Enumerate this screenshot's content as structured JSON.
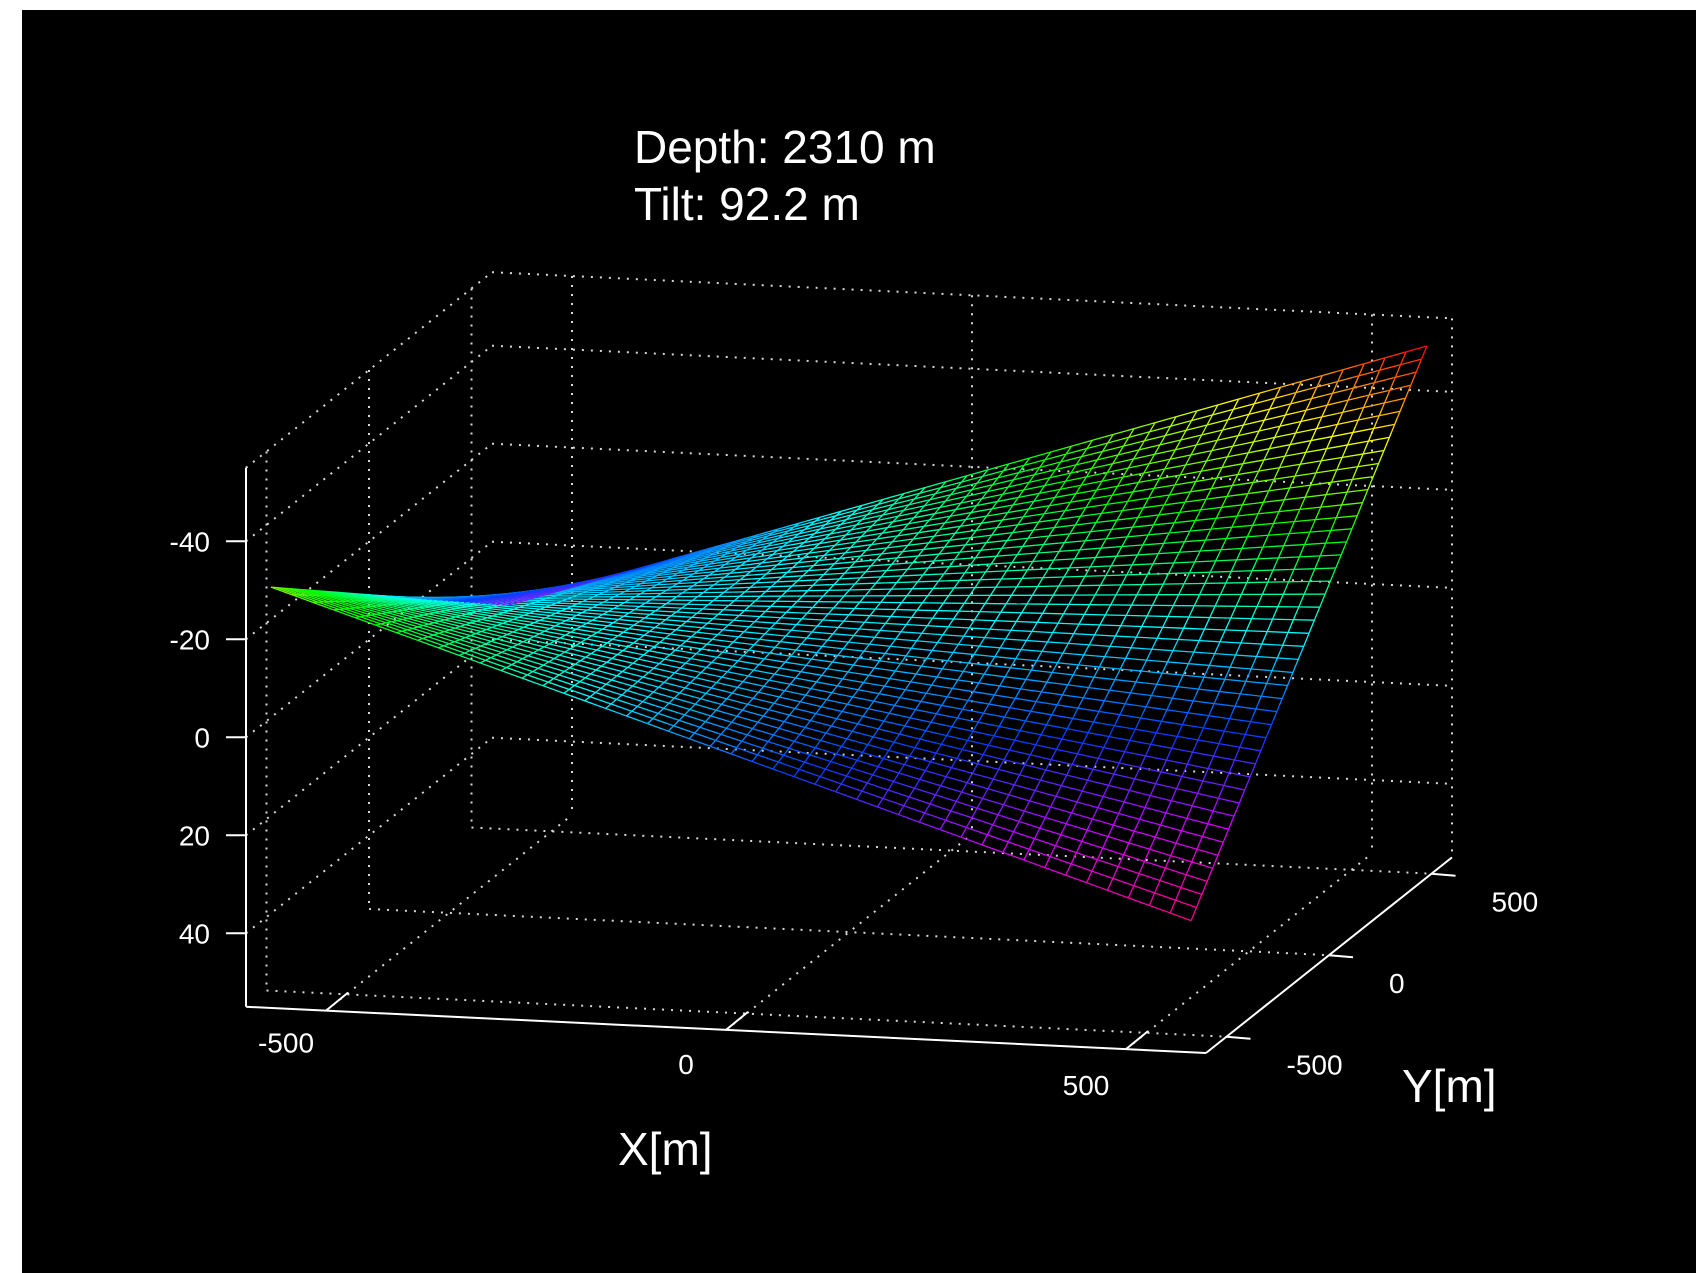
{
  "chart_data": {
    "type": "surface3d",
    "annotation": {
      "line1": "Depth: 2310 m",
      "line2": "Tilt: 92.2 m"
    },
    "xlabel": "X[m]",
    "ylabel": "Y[m]",
    "zlabel": "",
    "x_ticks": [
      "-500",
      "0",
      "500"
    ],
    "y_ticks": [
      "-500",
      "0",
      "500"
    ],
    "z_ticks": [
      "-40",
      "-20",
      "0",
      "20",
      "40"
    ],
    "xlim": [
      -600,
      600
    ],
    "ylim": [
      -600,
      600
    ],
    "zlim": [
      -55,
      55
    ],
    "z_axis_reversed": true,
    "grid": "dotted",
    "background": "#000000",
    "surface": {
      "x_range": [
        -575,
        575
      ],
      "y_range": [
        -575,
        575
      ],
      "corner_z": {
        "x_min_y_min": -30,
        "x_min_y_max": 12,
        "x_max_y_min": 29,
        "x_max_y_max": -50
      },
      "colormap": [
        "#ff0080",
        "#cc00ff",
        "#0040ff",
        "#00ffff",
        "#00ff00",
        "#ffff00",
        "#ff0000"
      ],
      "color_by": "height"
    }
  }
}
